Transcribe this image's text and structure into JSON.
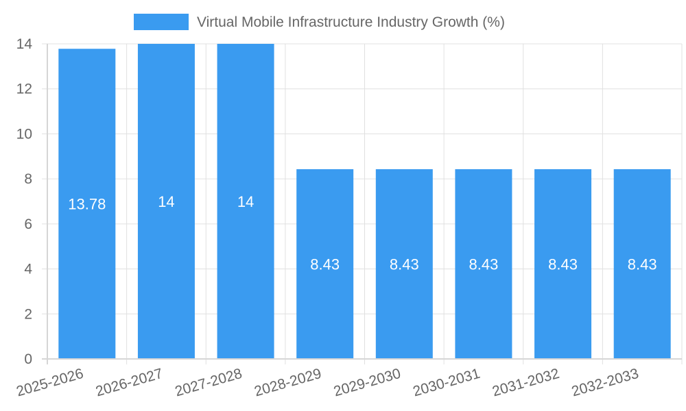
{
  "chart_data": {
    "type": "bar",
    "categories": [
      "2025-2026",
      "2026-2027",
      "2027-2028",
      "2028-2029",
      "2029-2030",
      "2030-2031",
      "2031-2032",
      "2032-2033"
    ],
    "series": [
      {
        "name": "Virtual Mobile Infrastructure Industry Growth (%)",
        "values": [
          13.78,
          14,
          14,
          8.43,
          8.43,
          8.43,
          8.43,
          8.43
        ],
        "color": "#3a9bf0"
      }
    ],
    "data_labels": [
      "13.78",
      "14",
      "14",
      "8.43",
      "8.43",
      "8.43",
      "8.43",
      "8.43"
    ],
    "ylim": [
      0,
      14
    ],
    "yticks": [
      0,
      2,
      4,
      6,
      8,
      10,
      12,
      14
    ],
    "grid": true,
    "legend_position": "top"
  }
}
